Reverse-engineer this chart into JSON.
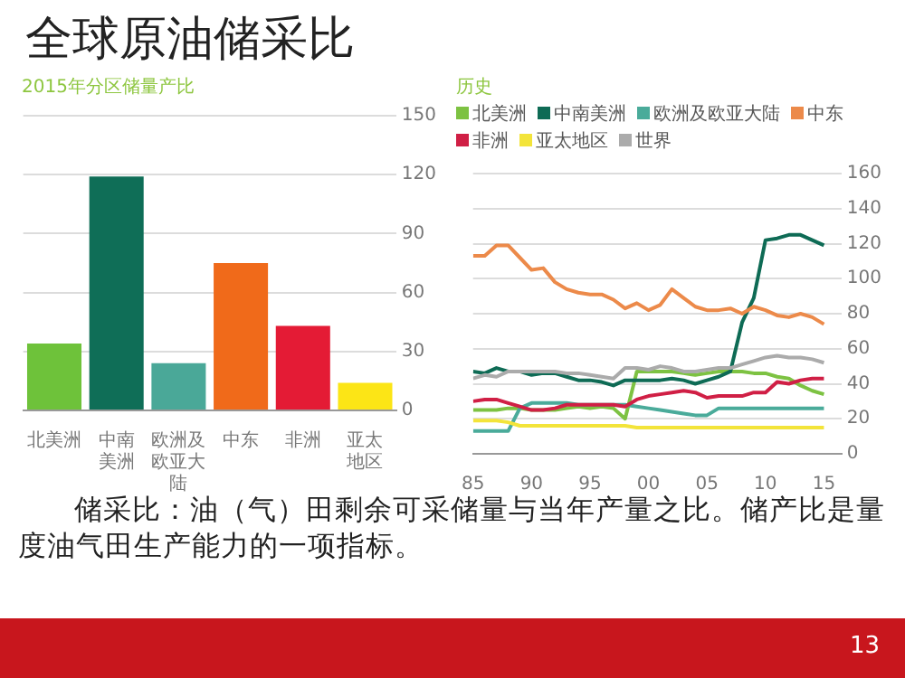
{
  "chart_data": [
    {
      "type": "other",
      "title": "全球原油储采比",
      "annotations": [
        "储采比：油（气）田剩余可采储量与当年产量之比。储产比是量度油气田生产能力的一项指标。",
        "13"
      ]
    },
    {
      "type": "bar",
      "title": "2015年分区储量产比",
      "categories": [
        "北美洲",
        "中南美洲",
        "欧洲及欧亚大陆",
        "中东",
        "非洲",
        "亚太地区"
      ],
      "values": [
        34,
        119,
        24,
        75,
        43,
        14
      ],
      "colors": [
        "#6ec23a",
        "#0f6e57",
        "#4aa898",
        "#f06a1a",
        "#e41b35",
        "#fce516"
      ],
      "ylim": [
        0,
        150
      ],
      "yticks": [
        0,
        30,
        60,
        90,
        120,
        150
      ],
      "grid": "y"
    },
    {
      "type": "line",
      "title": "历史",
      "x": [
        1985,
        1986,
        1987,
        1988,
        1989,
        1990,
        1991,
        1992,
        1993,
        1994,
        1995,
        1996,
        1997,
        1998,
        1999,
        2000,
        2001,
        2002,
        2003,
        2004,
        2005,
        2006,
        2007,
        2008,
        2009,
        2010,
        2011,
        2012,
        2013,
        2014,
        2015
      ],
      "series": [
        {
          "name": "北美洲",
          "color": "#7dc242",
          "values": [
            25,
            25,
            25,
            26,
            26,
            25,
            25,
            25,
            26,
            27,
            26,
            27,
            26,
            20,
            47,
            47,
            47,
            47,
            46,
            45,
            46,
            47,
            47,
            47,
            46,
            46,
            44,
            43,
            39,
            36,
            34
          ]
        },
        {
          "name": "中南美洲",
          "color": "#0e6b55",
          "values": [
            47,
            46,
            49,
            47,
            47,
            45,
            46,
            46,
            44,
            42,
            42,
            41,
            39,
            42,
            42,
            42,
            42,
            43,
            42,
            40,
            42,
            44,
            47,
            75,
            89,
            122,
            123,
            125,
            125,
            122,
            119
          ]
        },
        {
          "name": "欧洲及欧亚大陆",
          "color": "#4aab9a",
          "values": [
            13,
            13,
            13,
            13,
            26,
            29,
            29,
            29,
            29,
            28,
            28,
            28,
            28,
            28,
            27,
            26,
            25,
            24,
            23,
            22,
            22,
            26,
            26,
            26,
            26,
            26,
            26,
            26,
            26,
            26,
            26
          ]
        },
        {
          "name": "中东",
          "color": "#ec8a4a",
          "values": [
            113,
            113,
            119,
            119,
            112,
            105,
            106,
            98,
            94,
            92,
            91,
            91,
            88,
            83,
            86,
            82,
            85,
            94,
            89,
            84,
            82,
            82,
            83,
            80,
            84,
            82,
            79,
            78,
            80,
            78,
            74
          ]
        },
        {
          "name": "非洲",
          "color": "#d01f45",
          "values": [
            30,
            31,
            31,
            29,
            27,
            25,
            25,
            26,
            28,
            28,
            28,
            28,
            28,
            27,
            31,
            33,
            34,
            35,
            36,
            35,
            32,
            33,
            33,
            33,
            35,
            35,
            41,
            40,
            42,
            43,
            43
          ]
        },
        {
          "name": "亚太地区",
          "color": "#f3e43a",
          "values": [
            19,
            19,
            19,
            18,
            16,
            16,
            16,
            16,
            16,
            16,
            16,
            16,
            16,
            16,
            15,
            15,
            15,
            15,
            15,
            15,
            15,
            15,
            15,
            15,
            15,
            15,
            15,
            15,
            15,
            15,
            15
          ]
        },
        {
          "name": "世界",
          "color": "#ababab",
          "values": [
            43,
            45,
            44,
            47,
            47,
            47,
            47,
            47,
            46,
            46,
            45,
            44,
            43,
            49,
            49,
            48,
            50,
            49,
            47,
            47,
            48,
            49,
            49,
            51,
            53,
            55,
            56,
            55,
            55,
            54,
            52
          ]
        }
      ],
      "xlim": [
        1985,
        2016.5
      ],
      "xticks": [
        {
          "value": 1985,
          "label": "85"
        },
        {
          "value": 1990,
          "label": "90"
        },
        {
          "value": 1995,
          "label": "95"
        },
        {
          "value": 2000,
          "label": "00"
        },
        {
          "value": 2005,
          "label": "05"
        },
        {
          "value": 2010,
          "label": "10"
        },
        {
          "value": 2015,
          "label": "15"
        }
      ],
      "ylim": [
        0,
        160
      ],
      "yticks": [
        0,
        20,
        40,
        60,
        80,
        100,
        120,
        140,
        160
      ],
      "grid": "y",
      "legend": "top left",
      "marker": "none"
    }
  ]
}
